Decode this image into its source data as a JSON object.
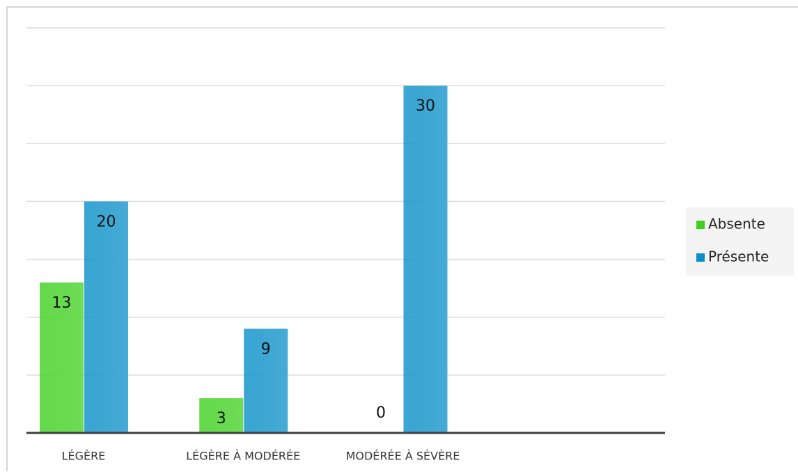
{
  "chart_data": {
    "type": "bar",
    "categories": [
      "LÉGÈRE",
      "LÉGÈRE À MODÉRÉE",
      "MODÉRÉE À SÉVÈRE",
      null
    ],
    "series": [
      {
        "name": "Absente",
        "color": "#3fd01f",
        "values": [
          13,
          3,
          0,
          null
        ]
      },
      {
        "name": "Présente",
        "color": "#0a8fc8",
        "values": [
          20,
          9,
          30,
          null
        ]
      }
    ],
    "ylim": [
      0,
      35
    ],
    "yticks": [
      0,
      5,
      10,
      15,
      20,
      25,
      30,
      35
    ],
    "grid": true,
    "legend": "right"
  }
}
